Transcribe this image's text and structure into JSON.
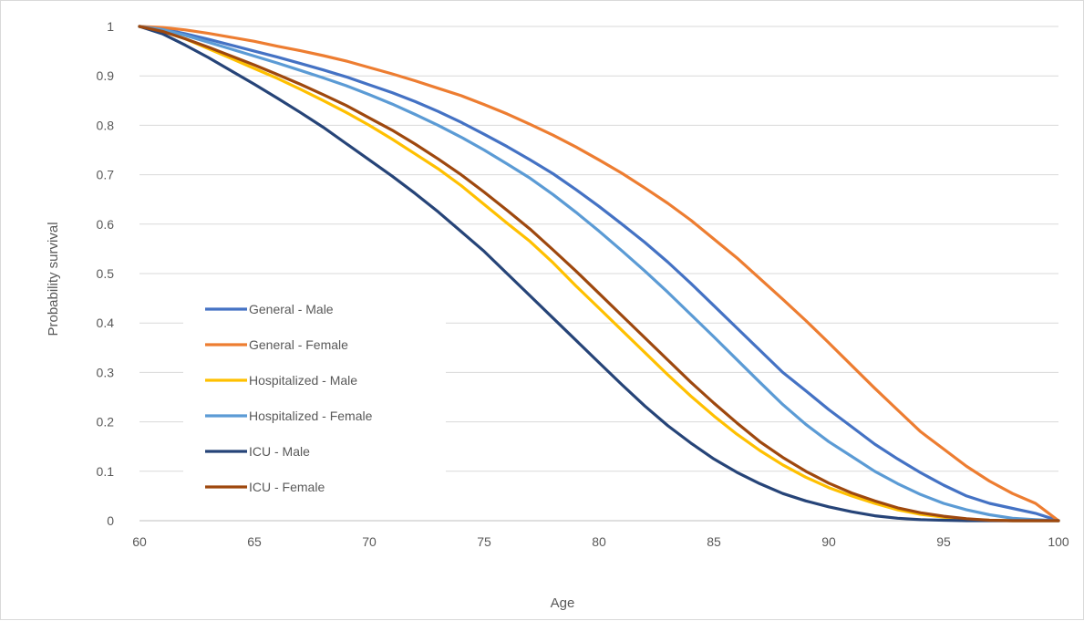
{
  "chart_data": {
    "type": "line",
    "title": "",
    "xlabel": "Age",
    "ylabel": "Probability survival",
    "xlim": [
      60,
      100
    ],
    "ylim": [
      0,
      1
    ],
    "x_ticks": [
      "60",
      "65",
      "70",
      "75",
      "80",
      "85",
      "90",
      "95",
      "100"
    ],
    "y_ticks": [
      "0",
      "0.1",
      "0.2",
      "0.3",
      "0.4",
      "0.5",
      "0.6",
      "0.7",
      "0.8",
      "0.9",
      "1"
    ],
    "grid": "horizontal",
    "legend_position": "left-inside",
    "x": [
      60,
      61,
      62,
      63,
      64,
      65,
      66,
      67,
      68,
      69,
      70,
      71,
      72,
      73,
      74,
      75,
      76,
      77,
      78,
      79,
      80,
      81,
      82,
      83,
      84,
      85,
      86,
      87,
      88,
      89,
      90,
      91,
      92,
      93,
      94,
      95,
      96,
      97,
      98,
      99,
      100
    ],
    "series": [
      {
        "name": "General - Male",
        "color": "#4472C4",
        "values": [
          1.0,
          0.995,
          0.985,
          0.974,
          0.962,
          0.95,
          0.938,
          0.925,
          0.912,
          0.898,
          0.882,
          0.866,
          0.848,
          0.828,
          0.806,
          0.782,
          0.757,
          0.73,
          0.702,
          0.67,
          0.636,
          0.6,
          0.563,
          0.523,
          0.48,
          0.435,
          0.39,
          0.345,
          0.3,
          0.263,
          0.225,
          0.19,
          0.155,
          0.125,
          0.097,
          0.072,
          0.05,
          0.035,
          0.025,
          0.015,
          0.0
        ]
      },
      {
        "name": "General - Female",
        "color": "#ED7D31",
        "values": [
          1.0,
          0.998,
          0.993,
          0.986,
          0.978,
          0.97,
          0.96,
          0.951,
          0.941,
          0.93,
          0.917,
          0.904,
          0.89,
          0.875,
          0.86,
          0.842,
          0.823,
          0.802,
          0.78,
          0.756,
          0.73,
          0.703,
          0.673,
          0.642,
          0.608,
          0.57,
          0.532,
          0.49,
          0.448,
          0.405,
          0.36,
          0.314,
          0.268,
          0.224,
          0.18,
          0.145,
          0.11,
          0.08,
          0.055,
          0.035,
          0.0
        ]
      },
      {
        "name": "Hospitalized - Male",
        "color": "#FFC000",
        "values": [
          1.0,
          0.99,
          0.975,
          0.955,
          0.935,
          0.915,
          0.895,
          0.873,
          0.85,
          0.826,
          0.8,
          0.772,
          0.742,
          0.712,
          0.678,
          0.64,
          0.602,
          0.565,
          0.522,
          0.475,
          0.43,
          0.385,
          0.34,
          0.295,
          0.252,
          0.212,
          0.175,
          0.142,
          0.113,
          0.088,
          0.067,
          0.05,
          0.035,
          0.022,
          0.013,
          0.007,
          0.003,
          0.001,
          0.0,
          0.0,
          0.0
        ]
      },
      {
        "name": "Hospitalized - Female",
        "color": "#5B9BD5",
        "values": [
          1.0,
          0.994,
          0.982,
          0.968,
          0.954,
          0.94,
          0.926,
          0.911,
          0.896,
          0.88,
          0.862,
          0.843,
          0.822,
          0.8,
          0.776,
          0.75,
          0.722,
          0.693,
          0.66,
          0.624,
          0.586,
          0.546,
          0.505,
          0.462,
          0.417,
          0.372,
          0.326,
          0.28,
          0.235,
          0.195,
          0.16,
          0.13,
          0.1,
          0.075,
          0.053,
          0.035,
          0.022,
          0.012,
          0.005,
          0.002,
          0.0
        ]
      },
      {
        "name": "ICU - Male",
        "color": "#264478",
        "values": [
          1.0,
          0.985,
          0.962,
          0.937,
          0.91,
          0.883,
          0.855,
          0.826,
          0.796,
          0.763,
          0.73,
          0.697,
          0.662,
          0.625,
          0.585,
          0.545,
          0.5,
          0.455,
          0.41,
          0.365,
          0.32,
          0.275,
          0.232,
          0.192,
          0.157,
          0.125,
          0.098,
          0.075,
          0.055,
          0.04,
          0.028,
          0.018,
          0.01,
          0.005,
          0.002,
          0.001,
          0.0,
          0.0,
          0.0,
          0.0,
          0.0
        ]
      },
      {
        "name": "ICU - Female",
        "color": "#9E480E",
        "values": [
          1.0,
          0.99,
          0.975,
          0.958,
          0.94,
          0.922,
          0.903,
          0.883,
          0.862,
          0.84,
          0.815,
          0.79,
          0.762,
          0.732,
          0.7,
          0.665,
          0.628,
          0.59,
          0.548,
          0.505,
          0.46,
          0.415,
          0.37,
          0.325,
          0.28,
          0.238,
          0.198,
          0.16,
          0.128,
          0.1,
          0.076,
          0.056,
          0.04,
          0.026,
          0.016,
          0.009,
          0.004,
          0.001,
          0.0,
          0.0,
          0.0
        ]
      }
    ]
  }
}
